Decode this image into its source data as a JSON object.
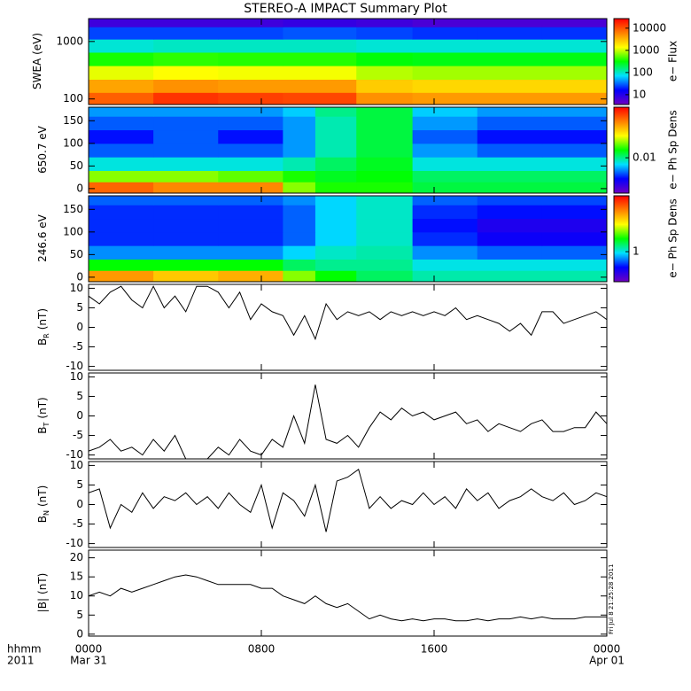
{
  "title": "STEREO-A IMPACT Summary Plot",
  "timestamp": "Fri Jul  8 21:25:28 2011",
  "chart_data": [
    {
      "type": "heatmap",
      "ylabel": "SWEA (eV)",
      "yscale": "log",
      "ylim": [
        80,
        2500
      ],
      "yticks": [
        100,
        1000
      ],
      "xlim": [
        0,
        24
      ],
      "xticks": [
        0,
        8,
        16,
        24
      ],
      "x_bins": [
        0,
        3,
        6,
        9,
        12.4,
        15,
        18,
        21,
        24
      ],
      "y_bins": [
        80,
        130,
        220,
        380,
        650,
        1100,
        1800,
        2500
      ],
      "z": [
        [
          9000,
          15000,
          13000,
          12000,
          5000,
          4500,
          4500,
          4500
        ],
        [
          4000,
          5000,
          4500,
          4500,
          2500,
          2200,
          2200,
          2200
        ],
        [
          1200,
          1400,
          1300,
          1300,
          900,
          800,
          800,
          800
        ],
        [
          350,
          400,
          380,
          380,
          300,
          280,
          280,
          280
        ],
        [
          90,
          100,
          100,
          100,
          90,
          90,
          90,
          90
        ],
        [
          25,
          25,
          25,
          28,
          25,
          22,
          22,
          22
        ],
        [
          7,
          7,
          7,
          8,
          7,
          6,
          6,
          6
        ]
      ],
      "zlim": [
        3.6,
        27000
      ],
      "log_z": true,
      "colormap": [
        "#7000c0",
        "#0000ff",
        "#00e0ff",
        "#00ff00",
        "#ffff00",
        "#ff8000",
        "#ff0000"
      ],
      "cbar_ticks": [
        10000,
        1000,
        100,
        10
      ],
      "cbar_label": "e− Flux"
    },
    {
      "type": "heatmap",
      "ylabel": "650.7 eV",
      "ylim": [
        -10,
        180
      ],
      "yticks": [
        0,
        50,
        100,
        150
      ],
      "xlim": [
        0,
        24
      ],
      "xticks": [
        0,
        8,
        16,
        24
      ],
      "x_bins": [
        0,
        3,
        6,
        9,
        10.5,
        12.4,
        15,
        18,
        21,
        24
      ],
      "y_bins": [
        -10,
        15,
        40,
        70,
        100,
        130,
        160,
        180
      ],
      "z": [
        [
          0.06,
          0.05,
          0.05,
          0.02,
          0.015,
          0.015,
          0.012,
          0.012,
          0.012
        ],
        [
          0.02,
          0.02,
          0.018,
          0.015,
          0.013,
          0.014,
          0.011,
          0.011,
          0.011
        ],
        [
          0.008,
          0.008,
          0.008,
          0.009,
          0.011,
          0.013,
          0.008,
          0.008,
          0.008
        ],
        [
          0.005,
          0.005,
          0.005,
          0.006,
          0.009,
          0.012,
          0.006,
          0.005,
          0.005
        ],
        [
          0.004,
          0.005,
          0.004,
          0.006,
          0.009,
          0.012,
          0.005,
          0.004,
          0.004
        ],
        [
          0.005,
          0.005,
          0.005,
          0.006,
          0.009,
          0.012,
          0.006,
          0.005,
          0.005
        ],
        [
          0.006,
          0.006,
          0.006,
          0.007,
          0.01,
          0.012,
          0.007,
          0.006,
          0.006
        ]
      ],
      "zlim": [
        0.002,
        0.1
      ],
      "log_z": true,
      "colormap": [
        "#7000c0",
        "#0000ff",
        "#00e0ff",
        "#00ff00",
        "#ffff00",
        "#ff8000",
        "#ff0000"
      ],
      "cbar_ticks": [
        0.01
      ],
      "cbar_label": "e− Ph Sp Dens"
    },
    {
      "type": "heatmap",
      "ylabel": "246.6 eV",
      "ylim": [
        -10,
        180
      ],
      "yticks": [
        0,
        50,
        100,
        150
      ],
      "xlim": [
        0,
        24
      ],
      "xticks": [
        0,
        8,
        16,
        24
      ],
      "x_bins": [
        0,
        3,
        6,
        9,
        10.5,
        12.4,
        15,
        18,
        21,
        24
      ],
      "y_bins": [
        -10,
        15,
        40,
        70,
        100,
        130,
        160,
        180
      ],
      "z": [
        [
          8,
          6,
          7,
          3,
          2,
          1.5,
          1.2,
          1.2,
          1.2
        ],
        [
          2,
          2,
          2,
          1.5,
          1.3,
          1.3,
          1,
          1,
          1
        ],
        [
          0.7,
          0.7,
          0.7,
          0.9,
          1.1,
          1.2,
          0.7,
          0.6,
          0.6
        ],
        [
          0.5,
          0.5,
          0.5,
          0.6,
          0.9,
          1.1,
          0.5,
          0.4,
          0.4
        ],
        [
          0.5,
          0.5,
          0.5,
          0.6,
          0.9,
          1.1,
          0.45,
          0.35,
          0.35
        ],
        [
          0.5,
          0.5,
          0.5,
          0.6,
          0.9,
          1.1,
          0.5,
          0.45,
          0.45
        ],
        [
          0.6,
          0.6,
          0.6,
          0.7,
          0.9,
          1.1,
          0.6,
          0.55,
          0.55
        ]
      ],
      "zlim": [
        0.2,
        20
      ],
      "log_z": true,
      "colormap": [
        "#7000c0",
        "#0000ff",
        "#00e0ff",
        "#00ff00",
        "#ffff00",
        "#ff8000",
        "#ff0000"
      ],
      "cbar_ticks": [
        1
      ],
      "cbar_label": "e− Ph Sp Dens"
    },
    {
      "type": "line",
      "ylabel": "B",
      "ylabel_sub": "R",
      "ylabel_unit": "(nT)",
      "ylim": [
        -11,
        11
      ],
      "yticks": [
        10,
        5,
        0,
        -5,
        -10
      ],
      "xlim": [
        0,
        24
      ],
      "xticks": [
        0,
        8,
        16,
        24
      ],
      "color": "#000000",
      "x": [
        0,
        0.5,
        1,
        1.5,
        2,
        2.5,
        3,
        3.5,
        4,
        4.5,
        5,
        5.5,
        6,
        6.5,
        7,
        7.5,
        8,
        8.5,
        9,
        9.5,
        10,
        10.5,
        11,
        11.5,
        12,
        12.5,
        13,
        13.5,
        14,
        14.5,
        15,
        15.5,
        16,
        16.5,
        17,
        17.5,
        18,
        18.5,
        19,
        19.5,
        20,
        20.5,
        21,
        21.5,
        22,
        22.5,
        23,
        23.5,
        24
      ],
      "values": [
        8,
        6,
        9,
        10.5,
        7,
        5,
        10.5,
        5,
        8,
        4,
        10.5,
        10.5,
        9,
        5,
        9,
        2,
        6,
        4,
        3,
        -2,
        3,
        -3,
        6,
        2,
        4,
        3,
        4,
        2,
        4,
        3,
        4,
        3,
        4,
        3,
        5,
        2,
        3,
        2,
        1,
        -1,
        1,
        -2,
        4,
        4,
        1,
        2,
        3,
        4,
        2
      ]
    },
    {
      "type": "line",
      "ylabel": "B",
      "ylabel_sub": "T",
      "ylabel_unit": "(nT)",
      "ylim": [
        -11,
        11
      ],
      "yticks": [
        10,
        5,
        0,
        -5,
        -10
      ],
      "xlim": [
        0,
        24
      ],
      "xticks": [
        0,
        8,
        16,
        24
      ],
      "color": "#000000",
      "x": [
        0,
        0.5,
        1,
        1.5,
        2,
        2.5,
        3,
        3.5,
        4,
        4.5,
        5,
        5.5,
        6,
        6.5,
        7,
        7.5,
        8,
        8.5,
        9,
        9.5,
        10,
        10.5,
        11,
        11.5,
        12,
        12.5,
        13,
        13.5,
        14,
        14.5,
        15,
        15.5,
        16,
        16.5,
        17,
        17.5,
        18,
        18.5,
        19,
        19.5,
        20,
        20.5,
        21,
        21.5,
        22,
        22.5,
        23,
        23.5,
        24
      ],
      "values": [
        -9,
        -8,
        -6,
        -9,
        -8,
        -10,
        -6,
        -9,
        -5,
        -11,
        -11,
        -11,
        -8,
        -10,
        -6,
        -9,
        -10,
        -6,
        -8,
        0,
        -7,
        8,
        -6,
        -7,
        -5,
        -8,
        -3,
        1,
        -1,
        2,
        0,
        1,
        -1,
        0,
        1,
        -2,
        -1,
        -4,
        -2,
        -3,
        -4,
        -2,
        -1,
        -4,
        -4,
        -3,
        -3,
        1,
        -2
      ]
    },
    {
      "type": "line",
      "ylabel": "B",
      "ylabel_sub": "N",
      "ylabel_unit": "(nT)",
      "ylim": [
        -11,
        11
      ],
      "yticks": [
        10,
        5,
        0,
        -5,
        -10
      ],
      "xlim": [
        0,
        24
      ],
      "xticks": [
        0,
        8,
        16,
        24
      ],
      "color": "#000000",
      "x": [
        0,
        0.5,
        1,
        1.5,
        2,
        2.5,
        3,
        3.5,
        4,
        4.5,
        5,
        5.5,
        6,
        6.5,
        7,
        7.5,
        8,
        8.5,
        9,
        9.5,
        10,
        10.5,
        11,
        11.5,
        12,
        12.5,
        13,
        13.5,
        14,
        14.5,
        15,
        15.5,
        16,
        16.5,
        17,
        17.5,
        18,
        18.5,
        19,
        19.5,
        20,
        20.5,
        21,
        21.5,
        22,
        22.5,
        23,
        23.5,
        24
      ],
      "values": [
        3,
        4,
        -6,
        0,
        -2,
        3,
        -1,
        2,
        1,
        3,
        0,
        2,
        -1,
        3,
        0,
        -2,
        5,
        -6,
        3,
        1,
        -3,
        5,
        -7,
        6,
        7,
        9,
        -1,
        2,
        -1,
        1,
        0,
        3,
        0,
        2,
        -1,
        4,
        1,
        3,
        -1,
        1,
        2,
        4,
        2,
        1,
        3,
        0,
        1,
        3,
        2
      ]
    },
    {
      "type": "line",
      "ylabel": "|B|",
      "ylabel_unit": "(nT)",
      "ylim": [
        -0.5,
        22
      ],
      "yticks": [
        0,
        5,
        10,
        15,
        20
      ],
      "xlim": [
        0,
        24
      ],
      "xticks": [
        {
          "value": 0,
          "label": "0000"
        },
        {
          "value": 8,
          "label": "0800"
        },
        {
          "value": 16,
          "label": "1600"
        },
        {
          "value": 24,
          "label": "0000"
        }
      ],
      "x_caption": [
        "hhmm",
        "2011"
      ],
      "date_start": "Mar 31",
      "date_end": "Apr 01",
      "color": "#000000",
      "x": [
        0,
        0.5,
        1,
        1.5,
        2,
        2.5,
        3,
        3.5,
        4,
        4.5,
        5,
        5.5,
        6,
        6.5,
        7,
        7.5,
        8,
        8.5,
        9,
        9.5,
        10,
        10.5,
        11,
        11.5,
        12,
        12.5,
        13,
        13.5,
        14,
        14.5,
        15,
        15.5,
        16,
        16.5,
        17,
        17.5,
        18,
        18.5,
        19,
        19.5,
        20,
        20.5,
        21,
        21.5,
        22,
        22.5,
        23,
        23.5,
        24
      ],
      "values": [
        10,
        11,
        10,
        12,
        11,
        12,
        13,
        14,
        15,
        15.5,
        15,
        14,
        13,
        13,
        13,
        13,
        12,
        12,
        10,
        9,
        8,
        10,
        8,
        7,
        8,
        6,
        4,
        5,
        4,
        3.5,
        4,
        3.5,
        4,
        4,
        3.5,
        3.5,
        4,
        3.5,
        4,
        4,
        4.5,
        4,
        4.5,
        4,
        4,
        4,
        4.5,
        4.5,
        4.5
      ]
    }
  ]
}
